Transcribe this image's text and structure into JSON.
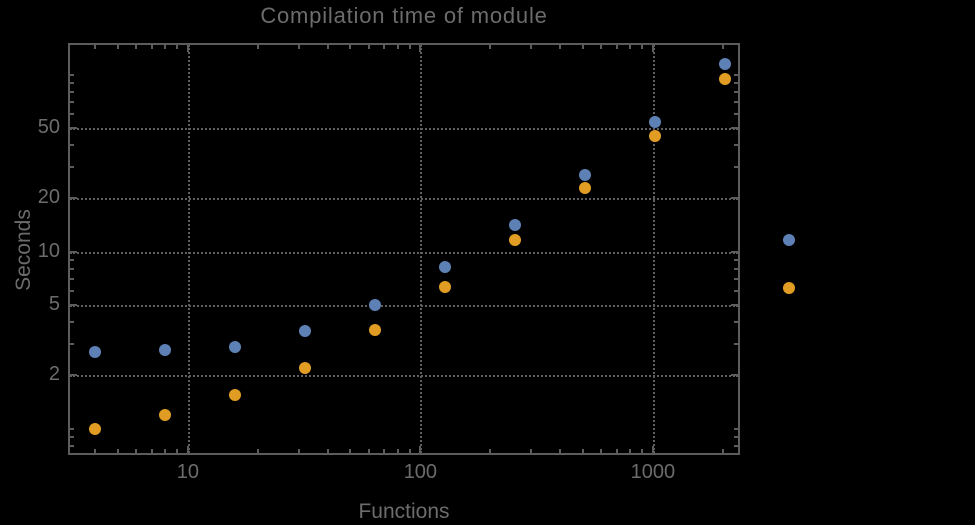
{
  "chart_data": {
    "type": "scatter",
    "title": "Compilation time of module",
    "xlabel": "Functions",
    "ylabel": "Seconds",
    "x_scale": "log",
    "y_scale": "log",
    "xlim": [
      3.05,
      2370
    ],
    "ylim": [
      0.71,
      151
    ],
    "grid": "dotted",
    "x": [
      4,
      8,
      16,
      32,
      64,
      128,
      256,
      512,
      1024,
      2048
    ],
    "series": [
      {
        "name": "series-1-blue",
        "color": "#5e81b5",
        "values": [
          2.7,
          2.8,
          2.9,
          3.55,
          5.0,
          8.2,
          14.2,
          27,
          54,
          115
        ]
      },
      {
        "name": "series-2-orange",
        "color": "#e19c24",
        "values": [
          1.0,
          1.2,
          1.55,
          2.2,
          3.6,
          6.3,
          11.7,
          23,
          45,
          94
        ]
      }
    ],
    "x_major_ticks": [
      10,
      100,
      1000
    ],
    "x_major_tick_labels": [
      "10",
      "100",
      "1000"
    ],
    "x_minor_ticks": [
      4,
      5,
      6,
      7,
      8,
      9,
      20,
      30,
      40,
      50,
      60,
      70,
      80,
      90,
      200,
      300,
      400,
      500,
      600,
      700,
      800,
      900,
      2000
    ],
    "y_major_ticks": [
      2,
      5,
      10,
      20,
      50
    ],
    "y_major_tick_labels": [
      "2",
      "5",
      "10",
      "20",
      "50"
    ],
    "y_minor_ticks": [
      0.8,
      0.9,
      1,
      3,
      4,
      6,
      7,
      8,
      9,
      30,
      40,
      60,
      70,
      80,
      90,
      100
    ],
    "legend_position": "right-outside"
  },
  "legend": {
    "markers": [
      {
        "series": "series-1-blue",
        "color": "#5e81b5"
      },
      {
        "series": "series-2-orange",
        "color": "#e19c24"
      }
    ]
  },
  "colors": {
    "background": "#000000",
    "frame": "#5c5c5c",
    "grid": "#5f5f5f",
    "text": "#6c6c6c",
    "series1": "#5e81b5",
    "series2": "#e19c24"
  }
}
